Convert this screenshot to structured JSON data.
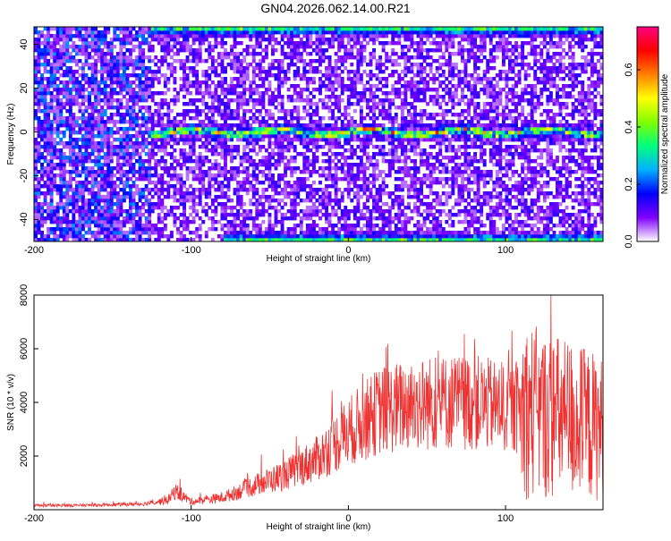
{
  "title": "GN04.2026.062.14.00.R21",
  "chart_data": [
    {
      "type": "heatmap",
      "title": "GN04.2026.062.14.00.R21",
      "xlabel": "Height of straight line (km)",
      "ylabel": "Frequency (Hz)",
      "xlim": [
        -200,
        162
      ],
      "ylim": [
        -50,
        48
      ],
      "x_ticks": [
        "-200",
        "-100",
        "0",
        "100"
      ],
      "y_ticks": [
        "-40",
        "-20",
        "0",
        "20",
        "40"
      ],
      "colorbar": {
        "label": "Normalized spectral amplitude",
        "range": [
          0.0,
          0.75
        ],
        "ticks": [
          "0.0",
          "0.2",
          "0.4",
          "0.6"
        ],
        "colors": [
          "#ffffff",
          "#8000ff",
          "#0000ff",
          "#00b0ff",
          "#00ff80",
          "#80ff00",
          "#ffff00",
          "#ff8000",
          "#ff0000",
          "#ff0080"
        ]
      },
      "features": [
        {
          "name": "band near 0 Hz",
          "x_range": [
            -125,
            162
          ],
          "frequency": 0
        },
        {
          "name": "band near top edge",
          "x_range": [
            -125,
            162
          ],
          "frequency": 47
        },
        {
          "name": "band near bottom edge",
          "x_range": [
            -80,
            162
          ],
          "frequency": -49
        }
      ],
      "grid": false
    },
    {
      "type": "line",
      "xlabel": "Height of straight line (km)",
      "ylabel": "SNR (10 * v/v)",
      "xlim": [
        -200,
        162
      ],
      "ylim": [
        0,
        8000
      ],
      "x_ticks": [
        "-200",
        "-100",
        "0",
        "100"
      ],
      "y_ticks": [
        "2000",
        "4000",
        "6000",
        "8000"
      ],
      "color": "#ee3333",
      "envelope": {
        "x": [
          -200,
          -160,
          -130,
          -115,
          -110,
          -100,
          -80,
          -60,
          -40,
          -20,
          0,
          20,
          40,
          60,
          80,
          100,
          115,
          125,
          140,
          162
        ],
        "y": [
          150,
          170,
          220,
          350,
          700,
          300,
          450,
          900,
          1300,
          1900,
          2900,
          3700,
          3900,
          4000,
          4000,
          3800,
          3700,
          3500,
          3400,
          3000
        ]
      },
      "grid": false
    }
  ]
}
